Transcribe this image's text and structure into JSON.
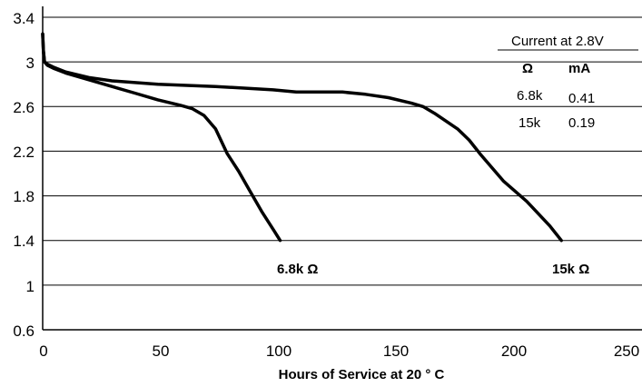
{
  "chart_data": {
    "type": "line",
    "title": "",
    "xlabel": "Hours of Service at 20 ° C",
    "ylabel": "",
    "xlim": [
      0,
      260
    ],
    "ylim": [
      0.6,
      3.4
    ],
    "x_ticks": [
      "0",
      "50",
      "100",
      "150",
      "200",
      "250"
    ],
    "y_ticks": [
      "3.4",
      "3",
      "2.6",
      "2.2",
      "1.8",
      "1.4",
      "1",
      "0.6"
    ],
    "grid": "horizontal",
    "series": [
      {
        "name": "6.8k Ω",
        "color": "#000000",
        "x": [
          0,
          0.3,
          0.8,
          2,
          5,
          10,
          20,
          30,
          40,
          50,
          60,
          65,
          70,
          75,
          80,
          85,
          90,
          95,
          100,
          103
        ],
        "y": [
          3.25,
          3.1,
          3.0,
          2.97,
          2.94,
          2.9,
          2.84,
          2.78,
          2.72,
          2.66,
          2.61,
          2.58,
          2.52,
          2.4,
          2.18,
          2.02,
          1.84,
          1.66,
          1.5,
          1.4
        ]
      },
      {
        "name": "15k Ω",
        "color": "#000000",
        "x": [
          0,
          0.3,
          0.8,
          2,
          5,
          10,
          20,
          30,
          50,
          75,
          100,
          110,
          120,
          130,
          140,
          150,
          160,
          165,
          170,
          180,
          185,
          190,
          195,
          200,
          210,
          220,
          225
        ],
        "y": [
          3.25,
          3.1,
          3.0,
          2.98,
          2.95,
          2.91,
          2.86,
          2.83,
          2.8,
          2.78,
          2.75,
          2.73,
          2.73,
          2.73,
          2.71,
          2.68,
          2.63,
          2.6,
          2.54,
          2.4,
          2.3,
          2.17,
          2.05,
          1.93,
          1.75,
          1.53,
          1.4
        ]
      }
    ],
    "curve_labels": [
      "6.8k Ω",
      "15k Ω"
    ],
    "legend": {
      "title": "Current at 2.8V",
      "headers": [
        "Ω",
        "mA"
      ],
      "rows": [
        [
          "6.8k",
          "0.41"
        ],
        [
          "15k",
          "0.19"
        ]
      ]
    }
  }
}
